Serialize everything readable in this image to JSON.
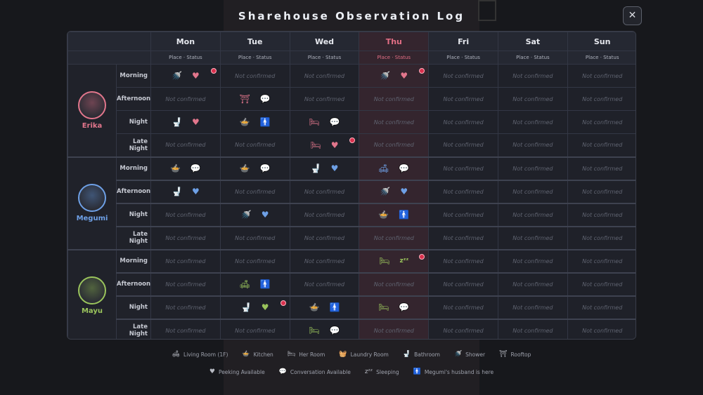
{
  "title": "Sharehouse Observation Log",
  "close_label": "✕",
  "colors": {
    "erika": "#e2768c",
    "megumi": "#6ea0e6",
    "mayu": "#9ac45c",
    "thu_accent": "#e36f85",
    "peek_dot": "#d9304d"
  },
  "days": [
    "Mon",
    "Tue",
    "Wed",
    "Thu",
    "Fri",
    "Sat",
    "Sun"
  ],
  "sub_label": "Place · Status",
  "slots": [
    "Morning",
    "Afternoon",
    "Night",
    "Late Night"
  ],
  "nc": "Not confirmed",
  "characters": [
    {
      "name": "Erika",
      "color": "#e2768c",
      "rows": [
        [
          [
            "shower-icon",
            "heart-icon",
            1
          ],
          0,
          0,
          [
            "shower-icon",
            "heart-icon",
            1
          ],
          0,
          0,
          0
        ],
        [
          0,
          [
            "rooftop-icon",
            "speech-icon",
            0
          ],
          0,
          0,
          0,
          0,
          0
        ],
        [
          [
            "bathroom-icon",
            "heart-icon",
            0
          ],
          [
            "kitchen-icon",
            "husband-icon",
            0
          ],
          [
            "her-room-icon",
            "speech-icon",
            0
          ],
          0,
          0,
          0,
          0
        ],
        [
          0,
          0,
          [
            "her-room-icon",
            "heart-icon",
            1
          ],
          0,
          0,
          0,
          0
        ]
      ]
    },
    {
      "name": "Megumi",
      "color": "#6ea0e6",
      "rows": [
        [
          [
            "kitchen-icon",
            "speech-icon",
            0
          ],
          [
            "kitchen-icon",
            "speech-icon",
            0
          ],
          [
            "bathroom-icon",
            "heart-icon",
            0
          ],
          [
            "living-room-icon",
            "speech-icon",
            0
          ],
          0,
          0,
          0
        ],
        [
          [
            "bathroom-icon",
            "heart-icon",
            0
          ],
          0,
          0,
          [
            "shower-icon",
            "heart-icon",
            0
          ],
          0,
          0,
          0
        ],
        [
          0,
          [
            "shower-icon",
            "heart-icon",
            0
          ],
          0,
          [
            "kitchen-icon",
            "husband-icon",
            0
          ],
          0,
          0,
          0
        ],
        [
          0,
          0,
          0,
          0,
          0,
          0,
          0
        ]
      ]
    },
    {
      "name": "Mayu",
      "color": "#9ac45c",
      "rows": [
        [
          0,
          0,
          0,
          [
            "her-room-icon",
            "sleep-icon",
            1
          ],
          0,
          0,
          0
        ],
        [
          0,
          [
            "living-room-icon",
            "husband-icon",
            0
          ],
          0,
          0,
          0,
          0,
          0
        ],
        [
          0,
          [
            "bathroom-icon",
            "heart-icon",
            1
          ],
          [
            "kitchen-icon",
            "husband-icon",
            0
          ],
          [
            "her-room-icon",
            "speech-icon",
            0
          ],
          0,
          0,
          0
        ],
        [
          0,
          0,
          [
            "her-room-icon",
            "speech-icon",
            0
          ],
          0,
          0,
          0,
          0
        ]
      ]
    }
  ],
  "legend_places": [
    {
      "icon": "living-room-icon",
      "label": "Living Room (1F)"
    },
    {
      "icon": "kitchen-icon",
      "label": "Kitchen"
    },
    {
      "icon": "her-room-icon",
      "label": "Her Room"
    },
    {
      "icon": "laundry-room-icon",
      "label": "Laundry Room"
    },
    {
      "icon": "bathroom-icon",
      "label": "Bathroom"
    },
    {
      "icon": "shower-icon",
      "label": "Shower"
    },
    {
      "icon": "rooftop-icon",
      "label": "Rooftop"
    }
  ],
  "legend_status": [
    {
      "icon": "heart-icon",
      "label": "Peeking Available"
    },
    {
      "icon": "speech-icon",
      "label": "Conversation Available"
    },
    {
      "icon": "sleep-icon",
      "label": "Sleeping"
    },
    {
      "icon": "husband-icon",
      "label": "Megumi's husband is here"
    }
  ]
}
